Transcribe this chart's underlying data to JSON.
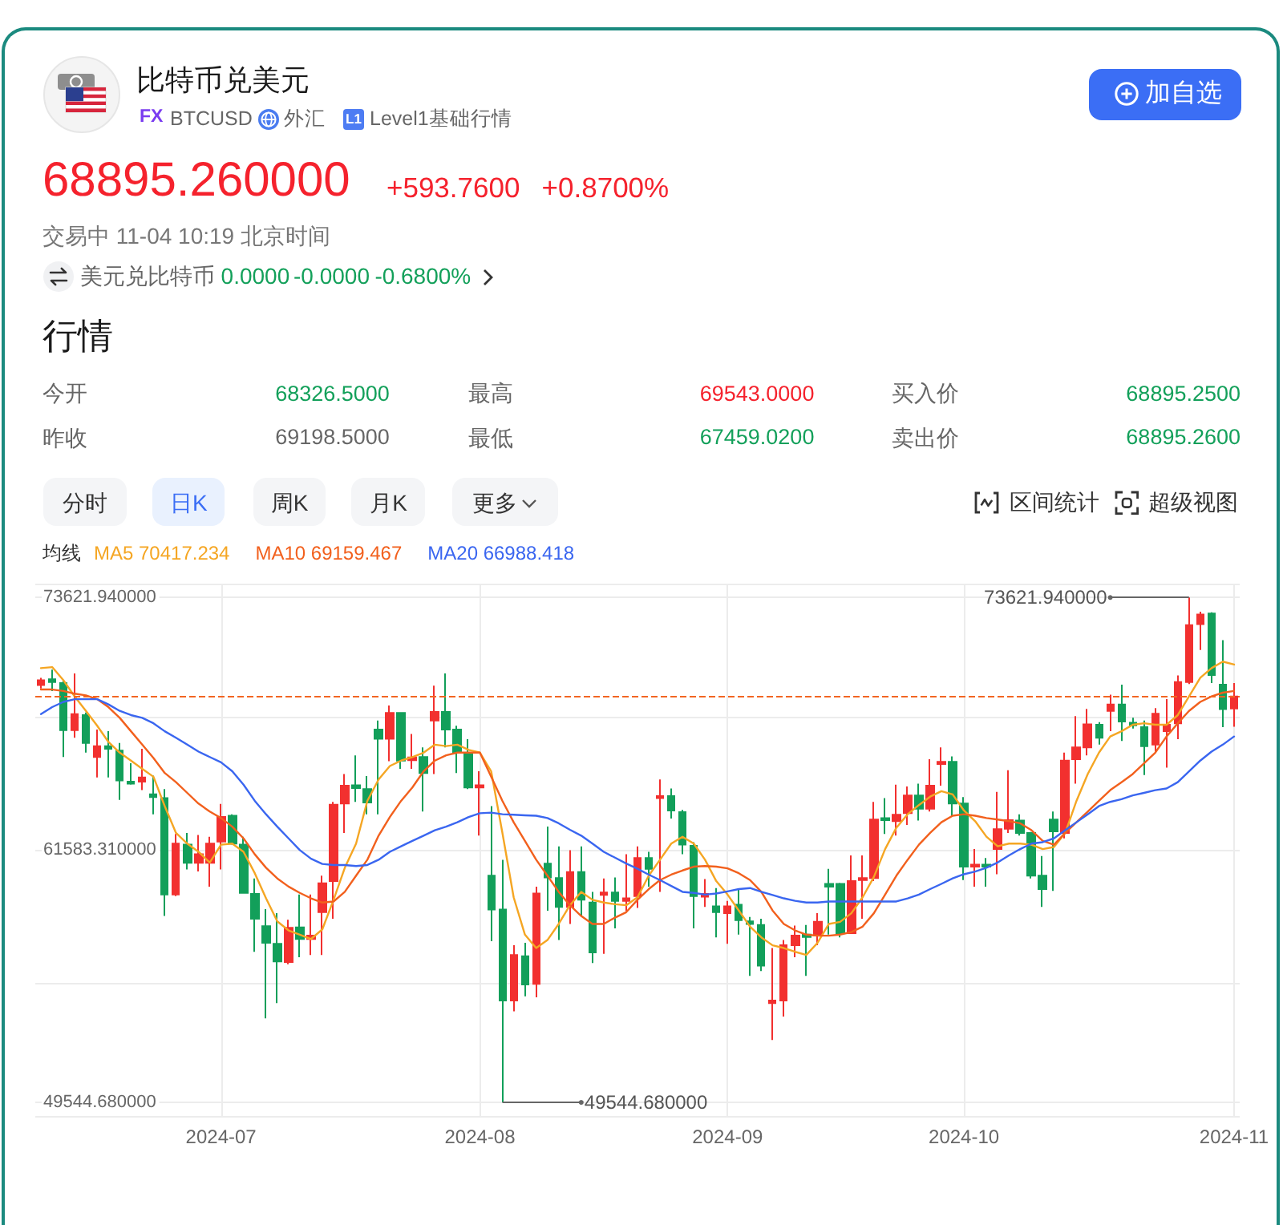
{
  "chart_data": [
    {
      "type": "other",
      "title": "比特币兑美元",
      "annotations": [
        "FX",
        "BTCUSD",
        "外汇",
        "L1",
        "Level1基础行情",
        "加自选",
        "68895.260000",
        "+593.7600",
        "+0.8700%",
        "交易中 11-04 10:19 北京时间",
        "美元兑比特币",
        "0.0000",
        "-0.0000",
        "-0.6800%",
        "行情",
        "今开",
        "68326.5000",
        "最高",
        "69543.0000",
        "买入价",
        "68895.2500",
        "昨收",
        "69198.5000",
        "最低",
        "67459.0200",
        "卖出价",
        "68895.2600",
        "分时",
        "日K",
        "周K",
        "月K",
        "更多",
        "区间统计",
        "超级视图"
      ]
    },
    {
      "type": "candlestick",
      "legend_title": "均线",
      "marker": "none",
      "grid": true,
      "categories": [
        null,
        null,
        null,
        null,
        null,
        null,
        null,
        null,
        null,
        null,
        null,
        null,
        null,
        null,
        null,
        null,
        "2024-07",
        null,
        null,
        null,
        null,
        null,
        null,
        null,
        null,
        null,
        null,
        null,
        null,
        null,
        null,
        null,
        null,
        null,
        null,
        null,
        null,
        null,
        null,
        "2024-08",
        null,
        null,
        null,
        null,
        null,
        null,
        null,
        null,
        null,
        null,
        null,
        null,
        null,
        null,
        null,
        null,
        null,
        null,
        null,
        null,
        null,
        "2024-09",
        null,
        null,
        null,
        null,
        null,
        null,
        null,
        null,
        null,
        null,
        null,
        null,
        null,
        null,
        null,
        null,
        null,
        null,
        null,
        null,
        "2024-10",
        null,
        null,
        null,
        null,
        null,
        null,
        null,
        null,
        null,
        null,
        null,
        null,
        null,
        null,
        null,
        null,
        null,
        null,
        null,
        null,
        null,
        null,
        null,
        "2024-11"
      ],
      "ohlc": [
        [
          69440,
          69790,
          69280,
          69670
        ],
        [
          69720,
          70180,
          69160,
          69590
        ],
        [
          69540,
          69670,
          66010,
          67290
        ],
        [
          67290,
          70000,
          66930,
          68060
        ],
        [
          68010,
          68130,
          66220,
          66680
        ],
        [
          66010,
          67320,
          65040,
          66530
        ],
        [
          66530,
          67240,
          65040,
          66400
        ],
        [
          66320,
          66680,
          63970,
          64890
        ],
        [
          64840,
          65710,
          64690,
          64740
        ],
        [
          64840,
          66400,
          64430,
          65040
        ],
        [
          64230,
          65120,
          63280,
          64100
        ],
        [
          64050,
          64480,
          58430,
          59450
        ],
        [
          59450,
          62340,
          59380,
          61880
        ],
        [
          61830,
          62390,
          60650,
          60960
        ],
        [
          60960,
          62290,
          60550,
          61370
        ],
        [
          60960,
          62210,
          59830,
          61880
        ],
        [
          61980,
          63770,
          60650,
          63150
        ],
        [
          63210,
          63280,
          61830,
          61880
        ],
        [
          61830,
          62210,
          59500,
          59530
        ],
        [
          59480,
          60220,
          56720,
          58300
        ],
        [
          57940,
          58760,
          53550,
          57150
        ],
        [
          57100,
          58560,
          54270,
          56260
        ],
        [
          56230,
          58250,
          56130,
          57870
        ],
        [
          57890,
          59450,
          56460,
          57330
        ],
        [
          57330,
          59450,
          56570,
          57490
        ],
        [
          58610,
          60350,
          56570,
          59990
        ],
        [
          60090,
          63870,
          58300,
          63740
        ],
        [
          63790,
          65200,
          62390,
          64640
        ],
        [
          64660,
          66090,
          63870,
          64530
        ],
        [
          64480,
          65100,
          63280,
          63840
        ],
        [
          67320,
          67750,
          63280,
          66880
        ],
        [
          66880,
          68470,
          65810,
          68110
        ],
        [
          68110,
          68130,
          65450,
          65840
        ],
        [
          65860,
          67110,
          65450,
          65990
        ],
        [
          66010,
          66470,
          63410,
          65250
        ],
        [
          67750,
          69410,
          65200,
          68160
        ],
        [
          68160,
          70000,
          66470,
          67320
        ],
        [
          67320,
          67500,
          65250,
          66220
        ],
        [
          66140,
          66860,
          64480,
          64560
        ],
        [
          64560,
          65330,
          62260,
          64660
        ],
        [
          60350,
          63670,
          57230,
          58740
        ],
        [
          58740,
          61110,
          49544.68,
          54400
        ],
        [
          54400,
          57030,
          53880,
          56570
        ],
        [
          56510,
          57150,
          54600,
          55160
        ],
        [
          55190,
          59830,
          54550,
          59500
        ],
        [
          60930,
          62690,
          58680,
          60270
        ],
        [
          60240,
          61750,
          57280,
          58860
        ],
        [
          58860,
          61570,
          58050,
          60520
        ],
        [
          60520,
          61750,
          58430,
          59200
        ],
        [
          59070,
          59580,
          56180,
          56690
        ],
        [
          59430,
          60220,
          56620,
          59550
        ],
        [
          59550,
          60270,
          57840,
          59150
        ],
        [
          59150,
          61370,
          58660,
          59270
        ],
        [
          59380,
          61750,
          58810,
          61190
        ],
        [
          61190,
          61490,
          59830,
          60680
        ],
        [
          64050,
          64940,
          59580,
          64150
        ],
        [
          64150,
          64510,
          63080,
          63460
        ],
        [
          63380,
          63490,
          61370,
          61830
        ],
        [
          61780,
          61950,
          57840,
          59380
        ],
        [
          59350,
          60190,
          58860,
          59480
        ],
        [
          58890,
          59760,
          57410,
          58610
        ],
        [
          58560,
          59150,
          57100,
          58890
        ],
        [
          58970,
          59710,
          57540,
          58230
        ],
        [
          58170,
          58380,
          55570,
          58050
        ],
        [
          58000,
          58300,
          55800,
          56060
        ],
        [
          54270,
          56900,
          52510,
          54400
        ],
        [
          54400,
          57280,
          53630,
          57030
        ],
        [
          57030,
          57970,
          56460,
          57490
        ],
        [
          57540,
          58000,
          55570,
          57430
        ],
        [
          57490,
          58560,
          57030,
          58150
        ],
        [
          59960,
          60680,
          57540,
          59830
        ],
        [
          59960,
          60010,
          57410,
          57610
        ],
        [
          57610,
          61320,
          57590,
          60090
        ],
        [
          60140,
          61320,
          58300,
          60240
        ],
        [
          60240,
          63870,
          60090,
          63030
        ],
        [
          63100,
          64050,
          62340,
          63000
        ],
        [
          62950,
          64690,
          62260,
          63260
        ],
        [
          63330,
          64610,
          62770,
          64180
        ],
        [
          64180,
          64740,
          62980,
          63540
        ],
        [
          63540,
          65910,
          63410,
          64640
        ],
        [
          65680,
          66470,
          64640,
          65780
        ],
        [
          65780,
          66040,
          63150,
          63790
        ],
        [
          63790,
          64100,
          60140,
          60780
        ],
        [
          60780,
          61620,
          59830,
          60880
        ],
        [
          60880,
          61190,
          59830,
          60780
        ],
        [
          61620,
          64350,
          60420,
          62570
        ],
        [
          62590,
          65380,
          62390,
          63000
        ],
        [
          62980,
          63280,
          62260,
          62390
        ],
        [
          62390,
          62440,
          60220,
          60350
        ],
        [
          60350,
          61290,
          58860,
          59710
        ],
        [
          63030,
          63410,
          59630,
          62460
        ],
        [
          62390,
          66220,
          62130,
          65840
        ],
        [
          65910,
          67960,
          64740,
          66470
        ],
        [
          66470,
          68310,
          66090,
          67570
        ],
        [
          67550,
          67670,
          66600,
          66930
        ],
        [
          68210,
          68980,
          67240,
          68520
        ],
        [
          68520,
          69460,
          66780,
          67700
        ],
        [
          67650,
          67880,
          67370,
          67520
        ],
        [
          67440,
          67750,
          65150,
          66530
        ],
        [
          66600,
          68340,
          66270,
          68080
        ],
        [
          67240,
          68770,
          65500,
          67550
        ],
        [
          67620,
          69900,
          66860,
          69590
        ],
        [
          69590,
          73621.94,
          69490,
          72300
        ],
        [
          72350,
          72940,
          71120,
          72810
        ],
        [
          72860,
          72910,
          69540,
          69920
        ],
        [
          69460,
          71580,
          67440,
          68300
        ],
        [
          68326.5,
          69543,
          67459.02,
          68895.26
        ]
      ],
      "colors": [
        "#f2302f",
        "#129f5a",
        "#129f5a",
        "#f2302f",
        "#129f5a",
        "#f2302f",
        "#129f5a",
        "#129f5a",
        "#129f5a",
        "#f2302f",
        "#129f5a",
        "#129f5a",
        "#f2302f",
        "#129f5a",
        "#f2302f",
        "#f2302f",
        "#f2302f",
        "#129f5a",
        "#129f5a",
        "#129f5a",
        "#129f5a",
        "#129f5a",
        "#f2302f",
        "#129f5a",
        "#f2302f",
        "#f2302f",
        "#f2302f",
        "#f2302f",
        "#129f5a",
        "#129f5a",
        "#129f5a",
        "#f2302f",
        "#129f5a",
        "#f2302f",
        "#129f5a",
        "#f2302f",
        "#129f5a",
        "#129f5a",
        "#129f5a",
        "#f2302f",
        "#129f5a",
        "#129f5a",
        "#f2302f",
        "#129f5a",
        "#f2302f",
        "#129f5a",
        "#129f5a",
        "#f2302f",
        "#129f5a",
        "#129f5a",
        "#f2302f",
        "#129f5a",
        "#f2302f",
        "#f2302f",
        "#129f5a",
        "#f2302f",
        "#129f5a",
        "#129f5a",
        "#129f5a",
        "#f2302f",
        "#129f5a",
        "#f2302f",
        "#129f5a",
        "#129f5a",
        "#129f5a",
        "#f2302f",
        "#f2302f",
        "#f2302f",
        "#129f5a",
        "#f2302f",
        "#129f5a",
        "#129f5a",
        "#f2302f",
        "#f2302f",
        "#f2302f",
        "#129f5a",
        "#f2302f",
        "#f2302f",
        "#129f5a",
        "#f2302f",
        "#f2302f",
        "#129f5a",
        "#129f5a",
        "#f2302f",
        "#129f5a",
        "#f2302f",
        "#f2302f",
        "#129f5a",
        "#129f5a",
        "#129f5a",
        "#129f5a",
        "#f2302f",
        "#f2302f",
        "#f2302f",
        "#129f5a",
        "#f2302f",
        "#129f5a",
        "#129f5a",
        "#129f5a",
        "#f2302f",
        "#f2302f",
        "#f2302f",
        "#f2302f",
        "#f2302f",
        "#129f5a",
        "#129f5a",
        "#f2302f"
      ],
      "series": [
        {
          "name": "MA5 70417.234",
          "type": "line",
          "color": "#f5a623",
          "values": [
            70250,
            70300,
            69670,
            68900,
            68210,
            67500,
            66730,
            66220,
            65840,
            65450,
            65070,
            63670,
            62390,
            61880,
            61490,
            60980,
            61830,
            61880,
            61490,
            60470,
            59270,
            58170,
            57740,
            57540,
            57330,
            57790,
            59200,
            60730,
            61880,
            63920,
            64940,
            65580,
            65840,
            66010,
            66220,
            66600,
            66530,
            66600,
            66350,
            66220,
            65330,
            62390,
            59320,
            57540,
            56900,
            57280,
            58050,
            58940,
            59580,
            59200,
            59070,
            58990,
            58940,
            59320,
            60350,
            61110,
            61880,
            62210,
            61880,
            61110,
            60090,
            59450,
            58690,
            57920,
            57410,
            57030,
            56900,
            56720,
            56570,
            57150,
            58050,
            58150,
            58560,
            59320,
            60290,
            61620,
            62640,
            63280,
            63720,
            64120,
            64380,
            64230,
            63460,
            62950,
            62210,
            61750,
            61880,
            61880,
            61830,
            61620,
            61720,
            62390,
            63920,
            65200,
            66220,
            66990,
            67240,
            67550,
            67620,
            67550,
            67550,
            68010,
            68900,
            69790,
            70250,
            70560,
            70420
          ]
        },
        {
          "name": "MA10 69159.467",
          "type": "line",
          "color": "#f2601d",
          "values": [
            69230,
            69230,
            69160,
            69030,
            68950,
            68770,
            68390,
            67880,
            67240,
            66600,
            65960,
            65250,
            64810,
            64300,
            63790,
            63410,
            63100,
            62690,
            62130,
            61370,
            60730,
            60220,
            59830,
            59530,
            59270,
            59070,
            59120,
            59580,
            60350,
            61110,
            62260,
            63150,
            63920,
            64560,
            65330,
            65840,
            66090,
            66220,
            66220,
            66220,
            65070,
            63920,
            62900,
            62010,
            61110,
            60350,
            59580,
            58940,
            58430,
            58050,
            58050,
            58350,
            58610,
            59200,
            59710,
            60140,
            60400,
            60600,
            60780,
            60810,
            60780,
            60700,
            60470,
            60140,
            59580,
            58690,
            58050,
            57740,
            57540,
            57490,
            57490,
            57540,
            57660,
            57920,
            58560,
            59450,
            60350,
            61110,
            61830,
            62390,
            62900,
            63210,
            63280,
            63210,
            63100,
            63030,
            62950,
            62850,
            62520,
            62010,
            61830,
            62390,
            62900,
            63410,
            63920,
            64430,
            64810,
            65200,
            65710,
            66220,
            66990,
            67620,
            68210,
            68640,
            68900,
            69080,
            69160
          ]
        },
        {
          "name": "MA20 66988.418",
          "type": "line",
          "color": "#3a66f0",
          "values": [
            68060,
            68390,
            68640,
            68770,
            68770,
            68770,
            68520,
            68210,
            68010,
            67880,
            67620,
            67240,
            66930,
            66600,
            66270,
            66010,
            65760,
            65330,
            64690,
            63920,
            63280,
            62690,
            62130,
            61570,
            61160,
            60910,
            60860,
            60860,
            60810,
            60860,
            61110,
            61490,
            61750,
            62010,
            62260,
            62520,
            62690,
            62900,
            63150,
            63330,
            63360,
            63280,
            63260,
            63230,
            63210,
            63100,
            62850,
            62540,
            62260,
            61880,
            61490,
            61210,
            60930,
            60680,
            60400,
            60140,
            59860,
            59580,
            59530,
            59450,
            59500,
            59600,
            59710,
            59760,
            59580,
            59430,
            59270,
            59150,
            59070,
            59070,
            59120,
            59120,
            59120,
            59120,
            59120,
            59120,
            59120,
            59270,
            59450,
            59710,
            59960,
            60220,
            60420,
            60550,
            60730,
            60980,
            61320,
            61620,
            61880,
            61950,
            62130,
            62520,
            62900,
            63280,
            63670,
            63870,
            64000,
            64180,
            64300,
            64430,
            64510,
            64810,
            65330,
            65840,
            66270,
            66600,
            66990
          ]
        }
      ],
      "ylim": [
        48890,
        74280
      ],
      "yticks": [
        {
          "value": 48890,
          "label": null
        },
        {
          "value": 49544.68,
          "label": "49544.680000"
        },
        {
          "value": 55237.5,
          "label": null
        },
        {
          "value": 61583.31,
          "label": "61583.310000"
        },
        {
          "value": 67932.5,
          "label": null
        },
        {
          "value": 73621.94,
          "label": "73621.940000"
        },
        {
          "value": 74280,
          "label": null
        }
      ],
      "ref_lines": [
        {
          "axis": "y",
          "value": 68895.26,
          "color": "#f26522",
          "line_style": "dashed"
        }
      ],
      "annotations": [
        "73621.940000",
        "49544.680000"
      ]
    }
  ]
}
